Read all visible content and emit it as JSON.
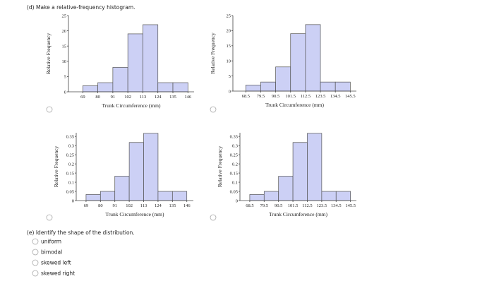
{
  "question_d": "(d) Make a relative-frequency histogram.",
  "chart_data": [
    {
      "type": "histogram",
      "ylabel": "Relative Frequency",
      "xlabel": "Trunk Circumference (mm)",
      "color": "#ccd0f5",
      "bins": [
        69,
        80,
        91,
        102,
        113,
        124,
        135,
        146
      ],
      "values": [
        2,
        3,
        8,
        19,
        22,
        3,
        3
      ],
      "xlim": [
        58.5,
        150.5
      ],
      "xticks": [
        69,
        80,
        91,
        102,
        113,
        124,
        135,
        146
      ],
      "ylim": [
        0,
        25
      ],
      "yticks": [
        0,
        5,
        10,
        15,
        20,
        25
      ]
    },
    {
      "type": "histogram",
      "ylabel": "Relative Frequency",
      "xlabel": "Trunk Circumference (mm)",
      "color": "#ccd0f5",
      "bins": [
        68.5,
        79.5,
        90.5,
        101.5,
        112.5,
        123.5,
        134.5,
        145.5
      ],
      "values": [
        2,
        3,
        8,
        19,
        22,
        3,
        3
      ],
      "xlim": [
        59,
        150
      ],
      "xticks": [
        68.5,
        79.5,
        90.5,
        101.5,
        112.5,
        123.5,
        134.5,
        145.5
      ],
      "ylim": [
        0,
        25
      ],
      "yticks": [
        0,
        5,
        10,
        15,
        20,
        25
      ]
    },
    {
      "type": "histogram",
      "ylabel": "Relative Frequency",
      "xlabel": "Trunk Circumference (mm)",
      "color": "#ccd0f5",
      "bins": [
        69,
        80,
        91,
        102,
        113,
        124,
        135,
        146
      ],
      "values": [
        0.033,
        0.05,
        0.133,
        0.317,
        0.367,
        0.05,
        0.05
      ],
      "xlim": [
        61.5,
        151
      ],
      "xticks": [
        69,
        80,
        91,
        102,
        113,
        124,
        135,
        146
      ],
      "ylim": [
        0,
        0.37
      ],
      "yticks": [
        0,
        0.05,
        0.1,
        0.15,
        0.2,
        0.25,
        0.3,
        0.35
      ]
    },
    {
      "type": "histogram",
      "ylabel": "Relative Frequency",
      "xlabel": "Trunk Circumference (mm)",
      "color": "#ccd0f5",
      "bins": [
        68.5,
        79.5,
        90.5,
        101.5,
        112.5,
        123.5,
        134.5,
        145.5
      ],
      "values": [
        0.033,
        0.05,
        0.133,
        0.317,
        0.367,
        0.05,
        0.05
      ],
      "xlim": [
        61,
        150
      ],
      "xticks": [
        68.5,
        79.5,
        90.5,
        101.5,
        112.5,
        123.5,
        134.5,
        145.5
      ],
      "ylim": [
        0,
        0.37
      ],
      "yticks": [
        0,
        0.05,
        0.1,
        0.15,
        0.2,
        0.25,
        0.3,
        0.35
      ]
    }
  ],
  "question_e": "(e) Identify the shape of the distribution.",
  "options": [
    "uniform",
    "bimodal",
    "skewed left",
    "skewed right"
  ]
}
